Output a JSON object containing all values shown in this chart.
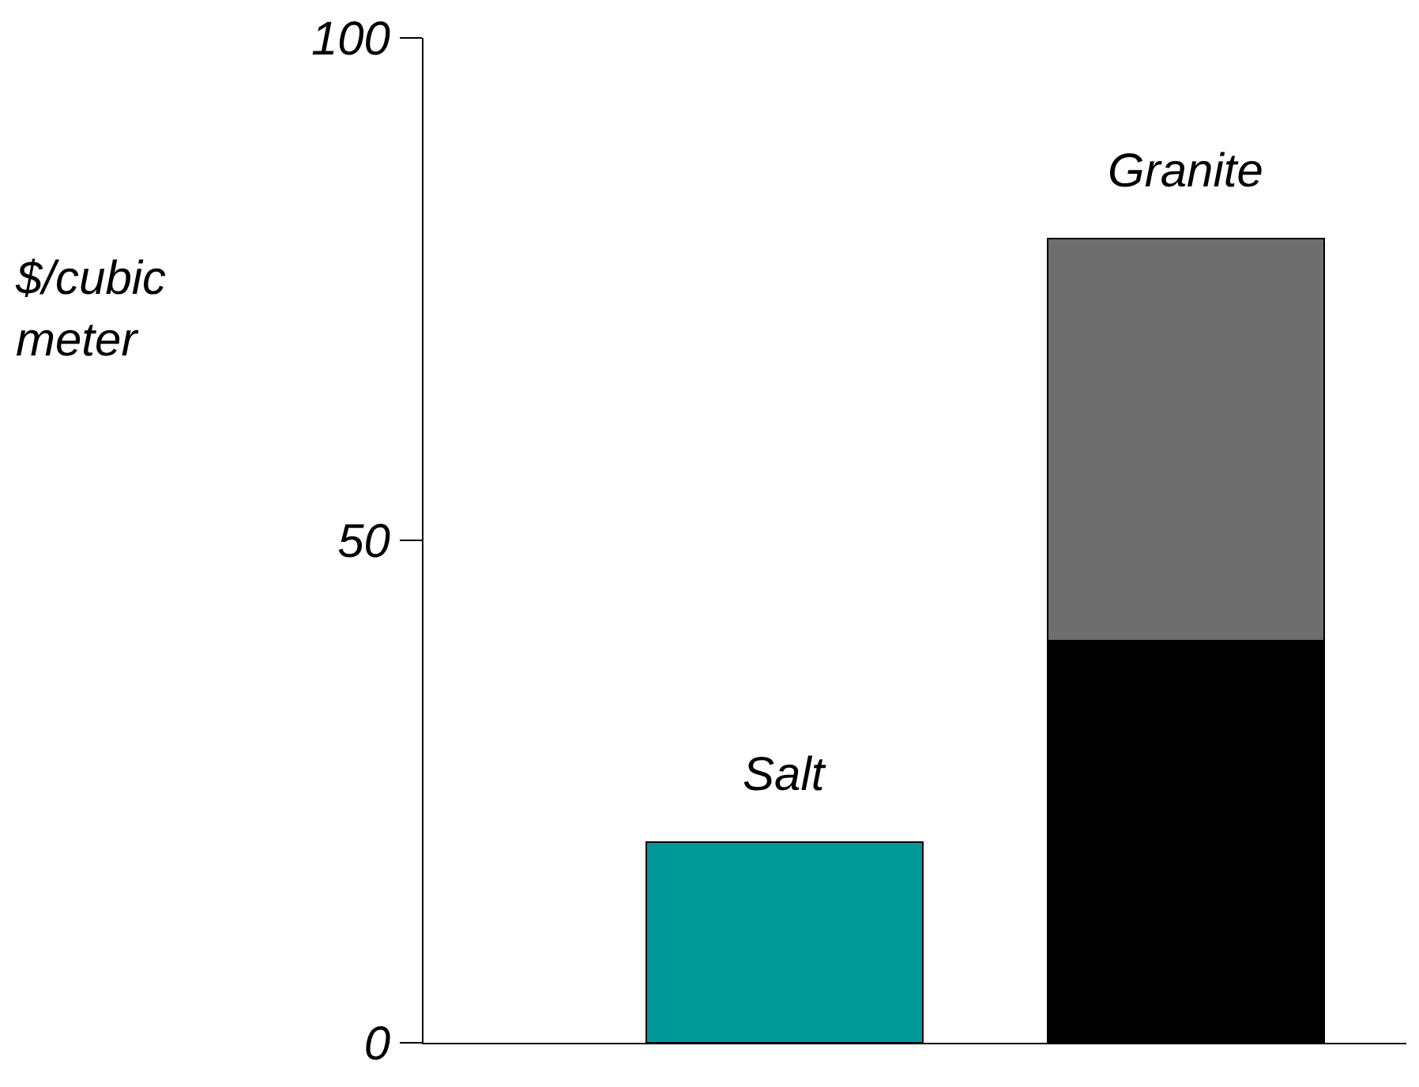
{
  "chart_data": {
    "type": "bar",
    "stacked": true,
    "ylabel": "$/cubic meter",
    "categories": [
      "Salt",
      "Granite"
    ],
    "series": [
      {
        "colors": [
          "#009999",
          "#000000"
        ],
        "values": [
          20,
          40
        ]
      },
      {
        "color": "#6e6e6e",
        "values": [
          null,
          40
        ]
      }
    ],
    "ylim": [
      0,
      100
    ],
    "yticks": [
      0,
      50,
      100
    ],
    "tick_labels": "y"
  }
}
